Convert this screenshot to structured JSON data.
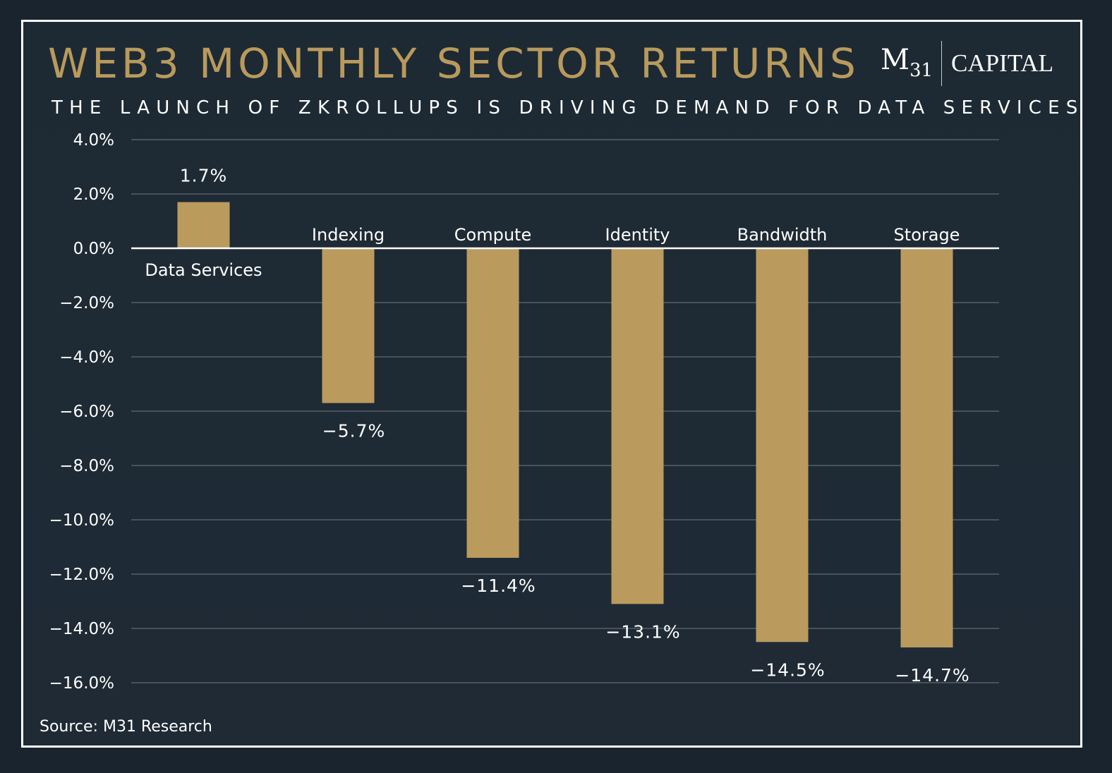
{
  "title": "WEB3 MONTHLY SECTOR RETURNS",
  "subtitle": "THE LAUNCH OF ZKROLLUPS IS DRIVING DEMAND FOR DATA SERVICES",
  "logo": {
    "mark": "M",
    "mark_sub": "31",
    "text": "CAPITAL"
  },
  "source": "Source: M31 Research",
  "colors": {
    "bar": "#ba9b5d",
    "background": "#1e2933",
    "title": "#b99a5c",
    "text": "#ffffff",
    "grid": "#56606a"
  },
  "chart_data": {
    "type": "bar",
    "categories": [
      "Data Services",
      "Indexing",
      "Compute",
      "Identity",
      "Bandwidth",
      "Storage"
    ],
    "values": [
      1.7,
      -5.7,
      -11.4,
      -13.1,
      -14.5,
      -14.7
    ],
    "value_labels": [
      "1.7%",
      "−5.7%",
      "−11.4%",
      "−13.1%",
      "−14.5%",
      "−14.7%"
    ],
    "ylim": [
      -16,
      4
    ],
    "yticks": [
      4,
      2,
      0,
      -2,
      -4,
      -6,
      -8,
      -10,
      -12,
      -14,
      -16
    ],
    "ytick_labels": [
      "4.0%",
      "2.0%",
      "0.0%",
      "−2.0%",
      "−4.0%",
      "−6.0%",
      "−8.0%",
      "−10.0%",
      "−12.0%",
      "−14.0%",
      "−16.0%"
    ],
    "grid": true,
    "legend": "none"
  }
}
